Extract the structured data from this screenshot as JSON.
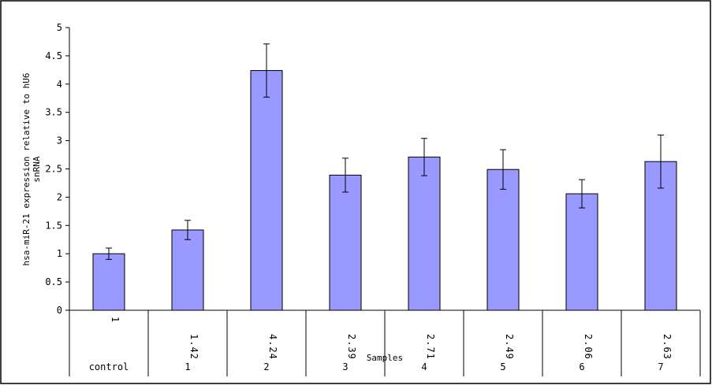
{
  "chart_data": {
    "type": "bar",
    "ylabel": "hsa-miR-21 expression relative to hU6 snRNA",
    "xlabel": "Samples",
    "ylim": [
      0,
      5
    ],
    "y_ticks": [
      "0",
      "0.5",
      "1",
      "1.5",
      "2",
      "2.5",
      "3",
      "3.5",
      "4",
      "4.5",
      "5"
    ],
    "categories": [
      "control",
      "1",
      "2",
      "3",
      "4",
      "5",
      "6",
      "7"
    ],
    "values": [
      1,
      1.42,
      4.24,
      2.39,
      2.71,
      2.49,
      2.06,
      2.63
    ],
    "data_labels": [
      "1",
      "1.42",
      "4.24",
      "2.39",
      "2.71",
      "2.49",
      "2.06",
      "2.63"
    ],
    "error_bars": [
      0.1,
      0.17,
      0.47,
      0.3,
      0.33,
      0.35,
      0.25,
      0.47
    ],
    "bar_color": "#9999ff",
    "grid": false,
    "legend": "none"
  }
}
